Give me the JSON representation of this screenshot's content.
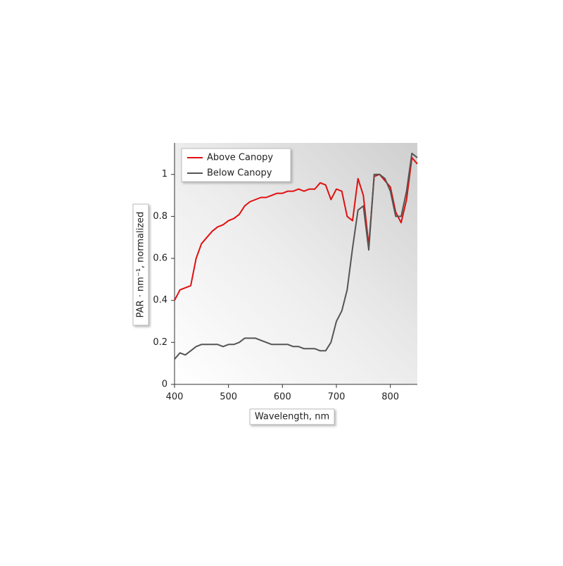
{
  "chart_data": {
    "type": "line",
    "x_label": "Wavelength, nm",
    "y_label": "PAR · nm⁻¹, normalized",
    "x": [
      400,
      410,
      420,
      430,
      440,
      450,
      460,
      470,
      480,
      490,
      500,
      510,
      520,
      530,
      540,
      550,
      560,
      570,
      580,
      590,
      600,
      610,
      620,
      630,
      640,
      650,
      660,
      670,
      680,
      690,
      700,
      710,
      720,
      730,
      740,
      750,
      760,
      770,
      780,
      790,
      800,
      810,
      820,
      830,
      840,
      850
    ],
    "series": [
      {
        "name": "Above Canopy",
        "color": "#e01010",
        "values": [
          0.4,
          0.45,
          0.46,
          0.47,
          0.6,
          0.67,
          0.7,
          0.73,
          0.75,
          0.76,
          0.78,
          0.79,
          0.81,
          0.85,
          0.87,
          0.88,
          0.89,
          0.89,
          0.9,
          0.91,
          0.91,
          0.92,
          0.92,
          0.93,
          0.92,
          0.93,
          0.93,
          0.96,
          0.95,
          0.88,
          0.93,
          0.92,
          0.8,
          0.78,
          0.98,
          0.9,
          0.66,
          0.99,
          1.0,
          0.97,
          0.94,
          0.82,
          0.77,
          0.88,
          1.08,
          1.05
        ]
      },
      {
        "name": "Below Canopy",
        "color": "#555555",
        "values": [
          0.12,
          0.15,
          0.14,
          0.16,
          0.18,
          0.19,
          0.19,
          0.19,
          0.19,
          0.18,
          0.19,
          0.19,
          0.2,
          0.22,
          0.22,
          0.22,
          0.21,
          0.2,
          0.19,
          0.19,
          0.19,
          0.19,
          0.18,
          0.18,
          0.17,
          0.17,
          0.17,
          0.16,
          0.16,
          0.2,
          0.3,
          0.35,
          0.45,
          0.65,
          0.83,
          0.85,
          0.64,
          1.0,
          1.0,
          0.98,
          0.92,
          0.8,
          0.8,
          0.92,
          1.1,
          1.08
        ]
      }
    ],
    "xlim": [
      400,
      850
    ],
    "xticks": [
      400,
      500,
      600,
      700,
      800
    ],
    "ylim": [
      0,
      1.15
    ],
    "yticks": [
      0,
      0.2,
      0.4,
      0.6,
      0.8,
      1
    ],
    "legend": "upper left"
  }
}
